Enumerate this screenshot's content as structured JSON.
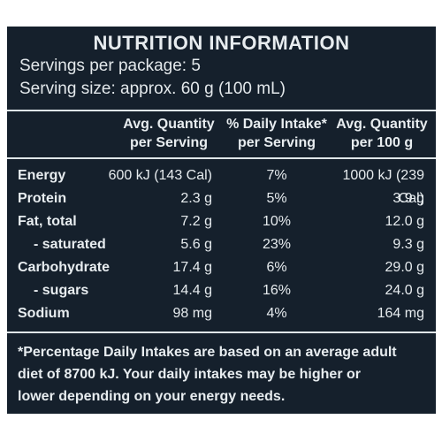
{
  "title": "NUTRITION INFORMATION",
  "servings_per_package": "Servings per package: 5",
  "serving_size": "Serving size: approx. 60 g (100 mL)",
  "headers": {
    "col1": [
      "Avg. Quantity",
      "per Serving"
    ],
    "col2": [
      "% Daily Intake*",
      "per Serving"
    ],
    "col3": [
      "Avg. Quantity",
      "per 100 g"
    ]
  },
  "rows": [
    {
      "label": "Energy",
      "per_serving": "600 kJ (143 Cal)",
      "daily_intake": "7%",
      "per_100g": "1000 kJ (239 Cal)"
    },
    {
      "label": "Protein",
      "per_serving": "2.3 g",
      "daily_intake": "5%",
      "per_100g": "3.9 g"
    },
    {
      "label": "Fat, total",
      "per_serving": "7.2 g",
      "daily_intake": "10%",
      "per_100g": "12.0 g"
    },
    {
      "label": "- saturated",
      "per_serving": "5.6 g",
      "daily_intake": "23%",
      "per_100g": "9.3 g"
    },
    {
      "label": "Carbohydrate",
      "per_serving": "17.4 g",
      "daily_intake": "6%",
      "per_100g": "29.0 g"
    },
    {
      "label": "- sugars",
      "per_serving": "14.4 g",
      "daily_intake": "16%",
      "per_100g": "24.0 g"
    },
    {
      "label": "Sodium",
      "per_serving": "98 mg",
      "daily_intake": "4%",
      "per_100g": "164 mg"
    }
  ],
  "footnote": [
    "*Percentage Daily Intakes are based on an average adult",
    "diet of 8700 kJ. Your daily intakes may be higher or",
    "lower depending on your energy needs."
  ],
  "colors": {
    "panel_background": "#15202c",
    "text": "#e7ecef"
  }
}
